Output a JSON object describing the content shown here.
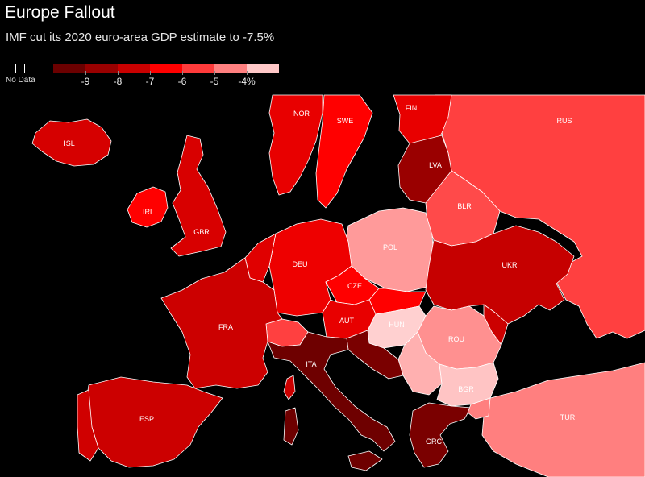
{
  "title": "Europe Fallout",
  "subtitle": "IMF cut its 2020 euro-area GDP estimate to -7.5%",
  "legend": {
    "no_data_label": "No Data",
    "ticks": [
      "-9",
      "-8",
      "-7",
      "-6",
      "-5",
      "-4%"
    ],
    "colors": [
      "#6b0000",
      "#990000",
      "#c80000",
      "#ff0000",
      "#ff3b3b",
      "#ff8080",
      "#ffc8c8"
    ]
  },
  "countries": [
    {
      "code": "ISL",
      "label": "ISL",
      "color": "#d60000"
    },
    {
      "code": "IRL",
      "label": "IRL",
      "color": "#ff0000"
    },
    {
      "code": "GBR",
      "label": "GBR",
      "color": "#d80000"
    },
    {
      "code": "NOR",
      "label": "NOR",
      "color": "#e80000"
    },
    {
      "code": "SWE",
      "label": "SWE",
      "color": "#ff0000"
    },
    {
      "code": "FIN",
      "label": "FIN",
      "color": "#e80000"
    },
    {
      "code": "RUS",
      "label": "RUS",
      "color": "#ff4040"
    },
    {
      "code": "LVA",
      "label": "LVA",
      "color": "#9a0000"
    },
    {
      "code": "BLR",
      "label": "BLR",
      "color": "#ff4a4a"
    },
    {
      "code": "POL",
      "label": "POL",
      "color": "#ff9a9a"
    },
    {
      "code": "UKR",
      "label": "UKR",
      "color": "#c60000"
    },
    {
      "code": "DEU",
      "label": "DEU",
      "color": "#ee0000"
    },
    {
      "code": "CZE",
      "label": "CZE",
      "color": "#ff0000"
    },
    {
      "code": "AUT",
      "label": "AUT",
      "color": "#e80000"
    },
    {
      "code": "HUN",
      "label": "HUN",
      "color": "#ffd0d0"
    },
    {
      "code": "ROU",
      "label": "ROU",
      "color": "#ff9090"
    },
    {
      "code": "BGR",
      "label": "BGR",
      "color": "#ffc4c4"
    },
    {
      "code": "FRA",
      "label": "FRA",
      "color": "#cc0000"
    },
    {
      "code": "ESP",
      "label": "ESP",
      "color": "#cc0000"
    },
    {
      "code": "ITA",
      "label": "ITA",
      "color": "#6e0000"
    },
    {
      "code": "GRC",
      "label": "GRC",
      "color": "#7a0000"
    },
    {
      "code": "TUR",
      "label": "TUR",
      "color": "#ff7f7f"
    }
  ]
}
